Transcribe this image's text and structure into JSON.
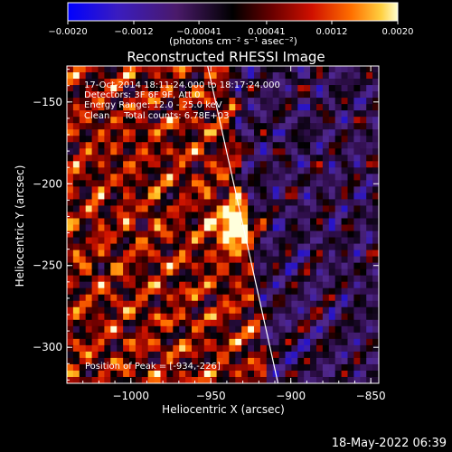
{
  "chart_data": {
    "type": "heatmap",
    "title": "Reconstructed RHESSI Image",
    "xlabel": "Heliocentric X (arcsec)",
    "ylabel": "Heliocentric Y (arcsec)",
    "xlim": [
      -1040,
      -845
    ],
    "ylim": [
      -322,
      -128
    ],
    "xticks": [
      -1000,
      -950,
      -900,
      -850
    ],
    "xtick_labels": [
      "−1000",
      "−950",
      "−900",
      "−850"
    ],
    "yticks": [
      -150,
      -200,
      -250,
      -300
    ],
    "ytick_labels": [
      "−150",
      "−200",
      "−250",
      "−300"
    ],
    "colorbar": {
      "min": -0.002,
      "max": 0.002,
      "ticks": [
        -0.002,
        -0.0012,
        -0.00041,
        0.00041,
        0.0012,
        0.002
      ],
      "tick_labels": [
        "−0.0020",
        "−0.0012",
        "−0.00041",
        "0.00041",
        "0.0012",
        "0.0020"
      ],
      "unit_label": "(photons cm⁻² s⁻¹ asec⁻²)"
    },
    "peak": {
      "x": -934,
      "y": -226
    },
    "limb_line": {
      "x1": -952,
      "y1": -128,
      "x2": -908,
      "y2": -322
    },
    "colors": {
      "negative": [
        "#0000ff",
        "#3b00aa",
        "#5a2a8a",
        "#3a1a5a",
        "#1a0a2a"
      ],
      "positive": [
        "#000000",
        "#5a0000",
        "#c00000",
        "#ff5000",
        "#ffb000",
        "#ffffa0",
        "#ffffff"
      ]
    }
  },
  "annotations": {
    "time_range": "17-Oct-2014 18:11:24.000 to 18:17:24.000",
    "detectors": "Detectors: 3F 6F 9F, Att 0",
    "energy": "Energy Range: 12.0 - 25.0 keV",
    "clean": "Clean     Total counts: 6.78E+03",
    "peak_label": "Position of Peak = [-934,-226]"
  },
  "footer": {
    "timestamp": "18-May-2022 06:39"
  }
}
